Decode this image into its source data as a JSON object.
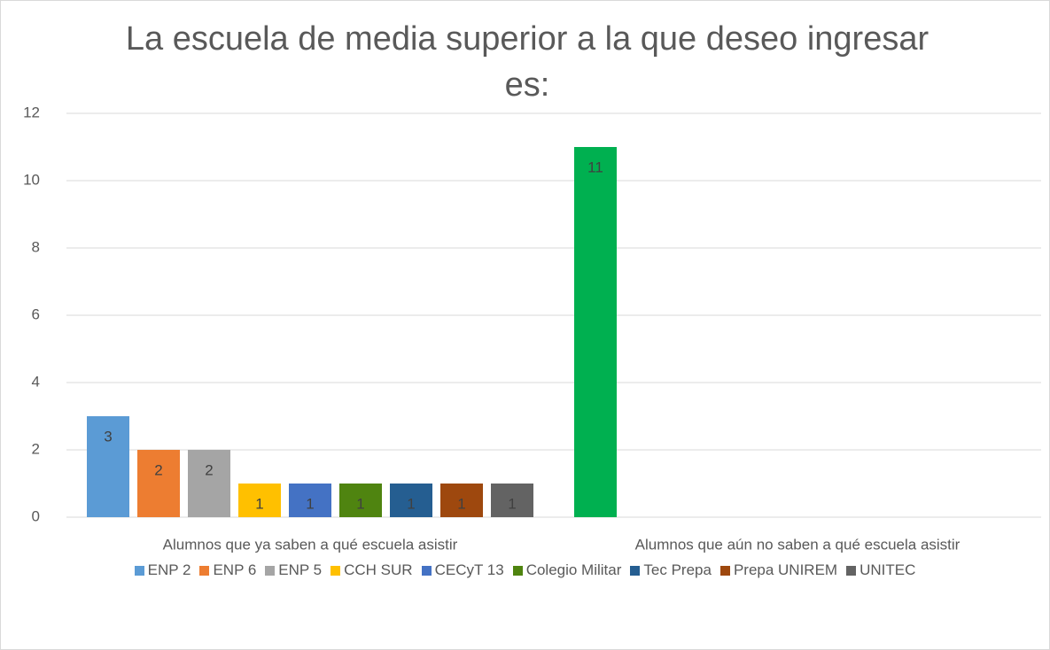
{
  "chart_data": {
    "type": "bar",
    "title": "La escuela de media superior a la que deseo ingresar es:",
    "categories": [
      "Alumnos que ya saben a qué escuela asistir",
      "Alumnos que aún no saben a qué escuela asistir"
    ],
    "series": [
      {
        "name": "ENP 2",
        "color": "#5b9bd5",
        "values": [
          3,
          null
        ]
      },
      {
        "name": "ENP 6",
        "color": "#ed7d31",
        "values": [
          2,
          null
        ]
      },
      {
        "name": "ENP 5",
        "color": "#a5a5a5",
        "values": [
          2,
          null
        ]
      },
      {
        "name": "CCH SUR",
        "color": "#ffc000",
        "values": [
          1,
          null
        ]
      },
      {
        "name": "CECyT 13",
        "color": "#4472c4",
        "values": [
          1,
          null
        ]
      },
      {
        "name": "Colegio Militar",
        "color": "#4f8410",
        "values": [
          1,
          null
        ]
      },
      {
        "name": "Tec Prepa",
        "color": "#255e91",
        "values": [
          1,
          null
        ]
      },
      {
        "name": "Prepa UNIREM",
        "color": "#9e480e",
        "values": [
          1,
          null
        ]
      },
      {
        "name": "UNITEC",
        "color": "#636363",
        "values": [
          1,
          null
        ]
      },
      {
        "color": "#00b050",
        "values": [
          null,
          11
        ]
      }
    ],
    "ylim": [
      0,
      12
    ],
    "yticks": [
      0,
      2,
      4,
      6,
      8,
      10,
      12
    ],
    "grid": true,
    "legend": "bottom",
    "data_labels": true
  }
}
